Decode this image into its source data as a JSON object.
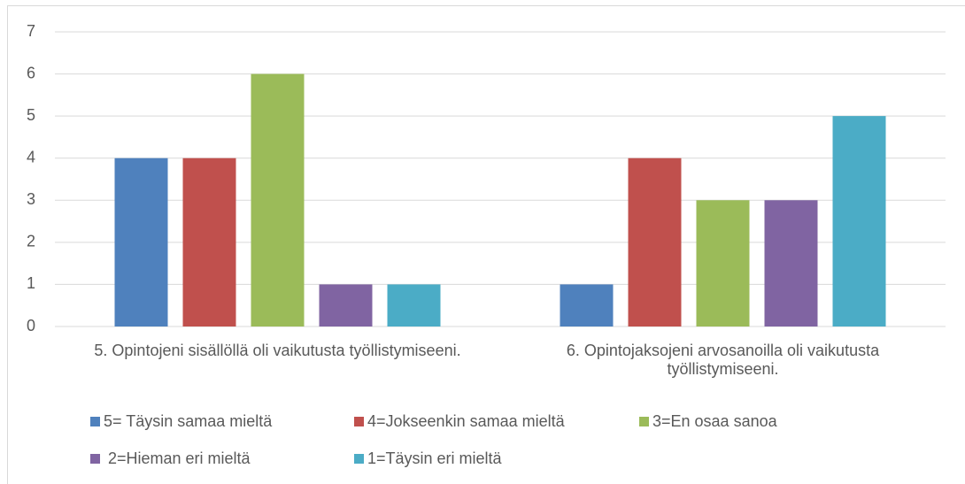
{
  "chart_data": {
    "type": "bar",
    "categories": [
      "5. Opintojeni sisällöllä oli vaikutusta työllistymiseeni.",
      "6. Opintojaksojeni arvosanoilla oli vaikutusta työllistymiseeni."
    ],
    "series": [
      {
        "name": "5= Täysin samaa mieltä",
        "color": "#4f81bd",
        "values": [
          4,
          1
        ]
      },
      {
        "name": "4=Jokseenkin samaa mieltä",
        "color": "#c0504d",
        "values": [
          4,
          4
        ]
      },
      {
        "name": "3=En osaa sanoa",
        "color": "#9bbb59",
        "values": [
          6,
          3
        ]
      },
      {
        "name": "2=Hieman eri mieltä",
        "color": "#8064a2",
        "values": [
          1,
          3
        ]
      },
      {
        "name": "1=Täysin eri mieltä",
        "color": "#4bacc6",
        "values": [
          1,
          5
        ]
      }
    ],
    "ylim": [
      0,
      7
    ],
    "yticks": [
      0,
      1,
      2,
      3,
      4,
      5,
      6,
      7
    ],
    "grid": true,
    "legend": "bottom"
  }
}
